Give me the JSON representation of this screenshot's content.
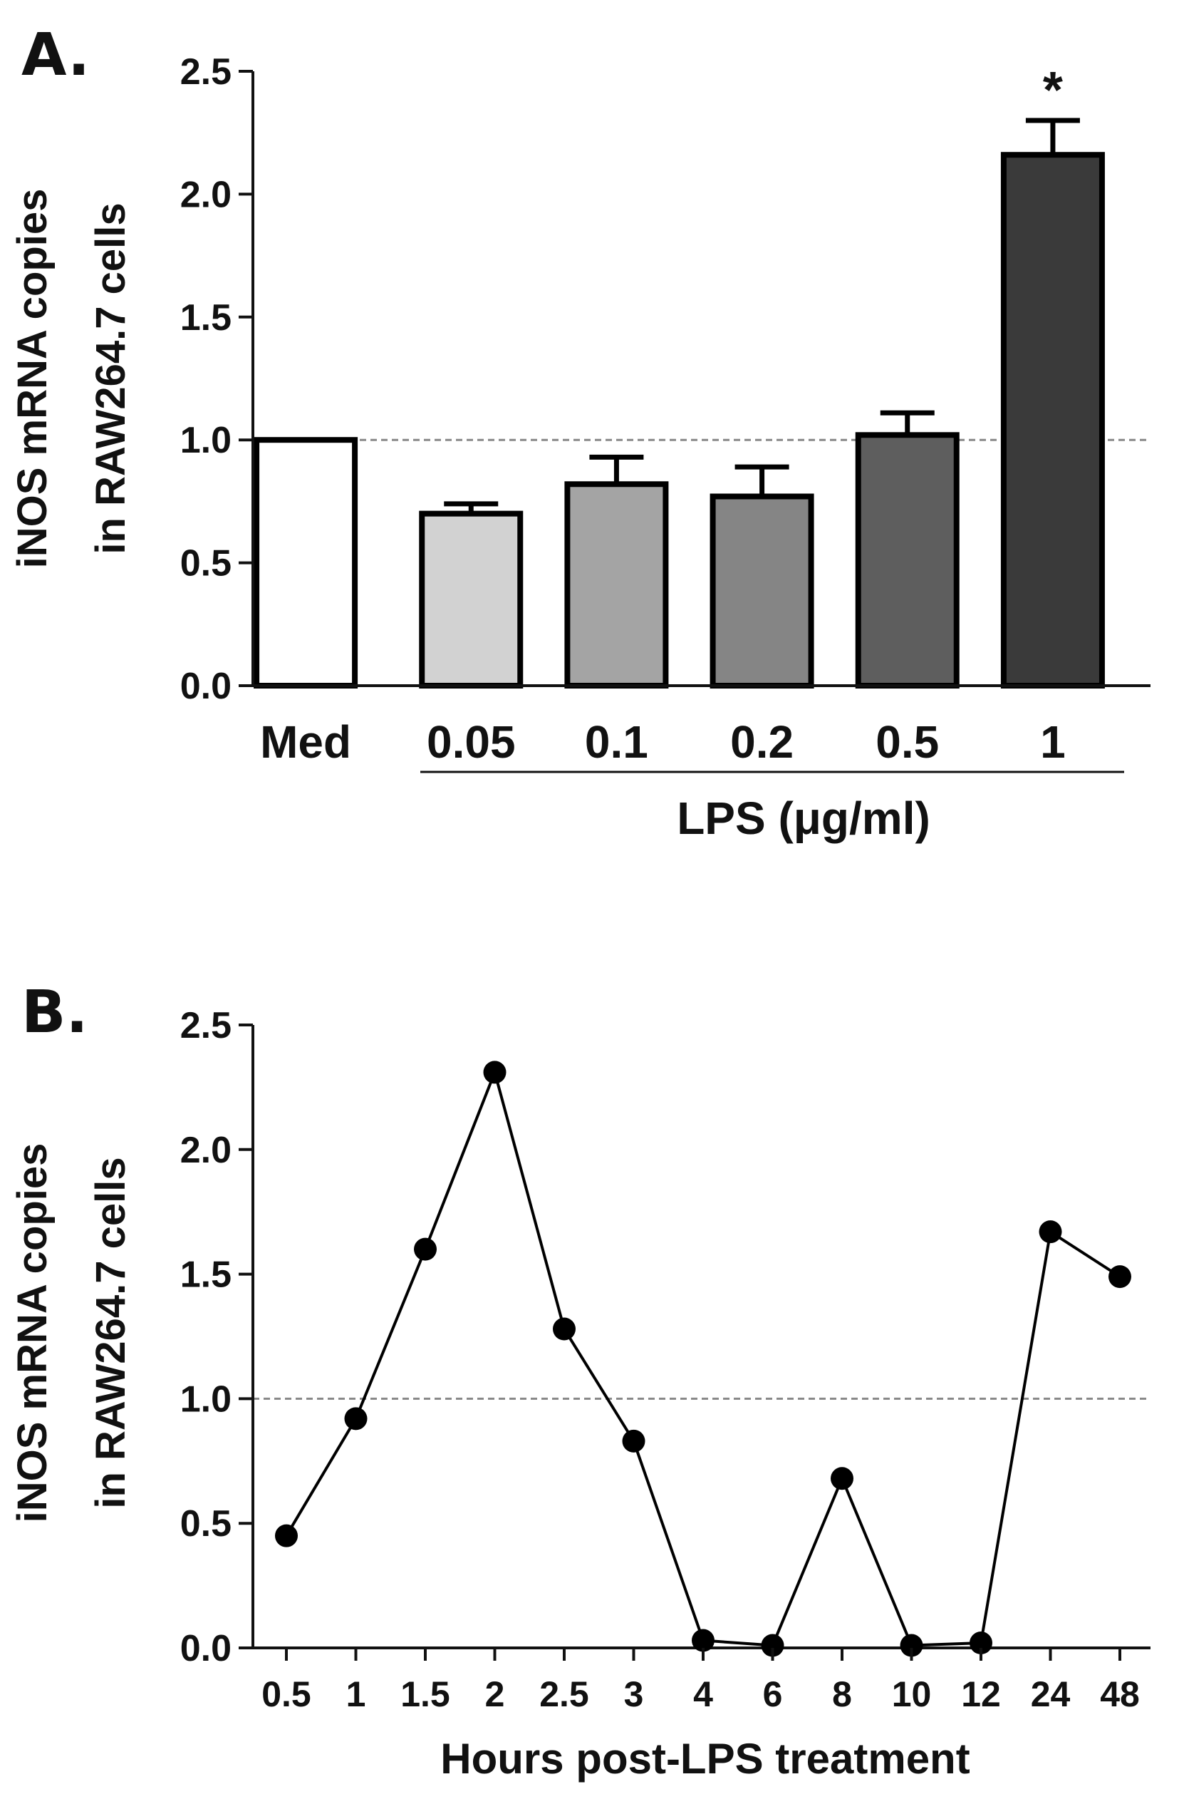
{
  "chart_data": [
    {
      "panel": "A.",
      "type": "bar",
      "ylabel_lines": [
        "iNOS mRNA copies",
        "in RAW264.7 cells"
      ],
      "xlabel": "LPS (μg/ml)",
      "categories": [
        "Med",
        "0.05",
        "0.1",
        "0.2",
        "0.5",
        "1"
      ],
      "values": [
        1.0,
        0.7,
        0.82,
        0.77,
        1.02,
        2.16
      ],
      "errors": [
        0,
        0.04,
        0.11,
        0.12,
        0.09,
        0.14
      ],
      "bar_colors": [
        "#ffffff",
        "#d2d2d2",
        "#a4a4a4",
        "#858585",
        "#5e5e5e",
        "#3a3a3a"
      ],
      "yticks": [
        "0.0",
        "0.5",
        "1.0",
        "1.5",
        "2.0",
        "2.5"
      ],
      "ylim": [
        0,
        2.5
      ],
      "reference_line": 1.0,
      "annotations": [
        {
          "category": "1",
          "text": "*"
        }
      ],
      "grid": false
    },
    {
      "panel": "B.",
      "type": "line",
      "ylabel_lines": [
        "iNOS mRNA copies",
        "in RAW264.7 cells"
      ],
      "xlabel": "Hours post-LPS treatment",
      "categories": [
        "0.5",
        "1",
        "1.5",
        "2",
        "2.5",
        "3",
        "4",
        "6",
        "8",
        "10",
        "12",
        "24",
        "48"
      ],
      "values": [
        0.45,
        0.92,
        1.6,
        2.31,
        1.28,
        0.83,
        0.03,
        0.01,
        0.68,
        0.01,
        0.02,
        1.67,
        1.49
      ],
      "yticks": [
        "0.0",
        "0.5",
        "1.0",
        "1.5",
        "2.0",
        "2.5"
      ],
      "ylim": [
        0,
        2.5
      ],
      "reference_line": 1.0,
      "grid": false
    }
  ]
}
